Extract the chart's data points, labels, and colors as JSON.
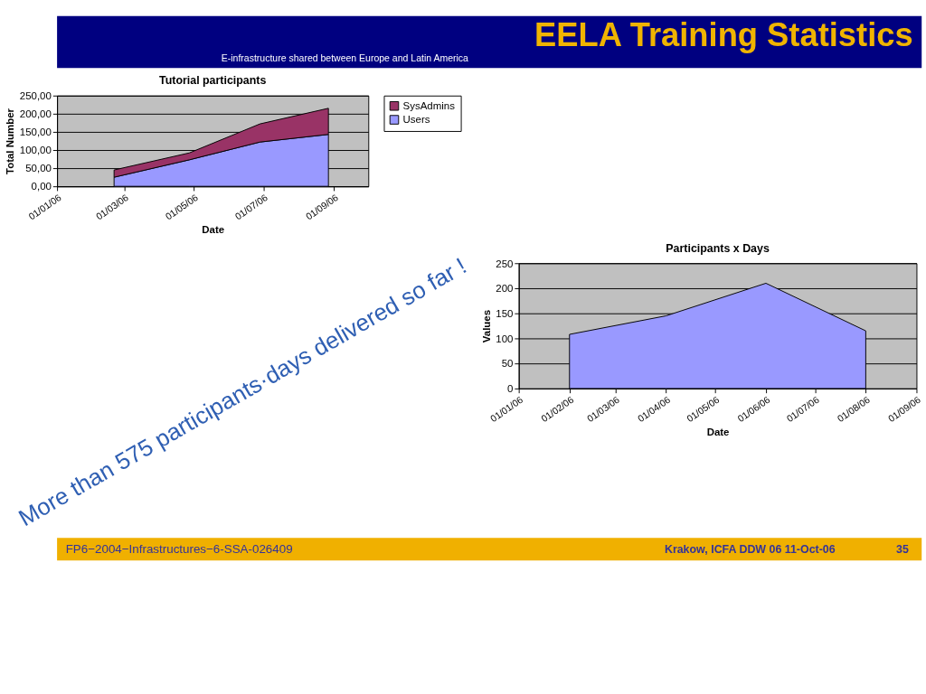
{
  "chart_data": [
    {
      "type": "area",
      "title": "Tutorial participants",
      "xlabel": "Date",
      "ylabel": "Total Number",
      "stacked": true,
      "grid": "y",
      "legend": "right",
      "x": [
        "2006-02-20",
        "2006-04-27",
        "2006-06-28",
        "2006-08-27"
      ],
      "series": [
        {
          "name": "Users",
          "color": "#9999ff",
          "values": [
            25,
            73,
            122,
            143
          ]
        },
        {
          "name": "SysAdmins",
          "color": "#993366",
          "values": [
            20,
            19,
            50,
            72
          ]
        }
      ],
      "xlim": [
        "2006-01-01",
        "2006-10-01"
      ],
      "xticks": [
        {
          "value": "2006-01-01",
          "label": "01/01/06"
        },
        {
          "value": "2006-03-01",
          "label": "01/03/06"
        },
        {
          "value": "2006-05-01",
          "label": "01/05/06"
        },
        {
          "value": "2006-07-01",
          "label": "01/07/06"
        },
        {
          "value": "2006-09-01",
          "label": "01/09/06"
        }
      ],
      "ylim": [
        0,
        250
      ],
      "yticks": [
        {
          "value": 0,
          "label": "0,00"
        },
        {
          "value": 50,
          "label": "50,00"
        },
        {
          "value": 100,
          "label": "100,00"
        },
        {
          "value": 150,
          "label": "150,00"
        },
        {
          "value": 200,
          "label": "200,00"
        },
        {
          "value": 250,
          "label": "250,00"
        }
      ],
      "annotations": [
        "EELA Training Statistics",
        "E-infrastructure shared between Europe and Latin America",
        "More than 575 participants·days delivered so far !",
        "FP6−2004−Infrastructures−6-SSA-026409",
        "Krakow, ICFA DDW 06 11-Oct-06",
        "35"
      ]
    },
    {
      "type": "area",
      "title": "Participants x Days",
      "xlabel": "Date",
      "ylabel": "Values",
      "grid": "y",
      "x": [
        "2006-02-01",
        "2006-04-01",
        "2006-06-01",
        "2006-08-01"
      ],
      "series": [
        {
          "color": "#9999ff",
          "values": [
            108,
            145,
            210,
            115
          ]
        }
      ],
      "xlim": [
        "2006-01-01",
        "2006-09-01"
      ],
      "xticks": [
        {
          "value": "2006-01-01",
          "label": "01/01/06"
        },
        {
          "value": "2006-02-01",
          "label": "01/02/06"
        },
        {
          "value": "2006-03-01",
          "label": "01/03/06"
        },
        {
          "value": "2006-04-01",
          "label": "01/04/06"
        },
        {
          "value": "2006-05-01",
          "label": "01/05/06"
        },
        {
          "value": "2006-06-01",
          "label": "01/06/06"
        },
        {
          "value": "2006-07-01",
          "label": "01/07/06"
        },
        {
          "value": "2006-08-01",
          "label": "01/08/06"
        },
        {
          "value": "2006-09-01",
          "label": "01/09/06"
        }
      ],
      "ylim": [
        0,
        250
      ],
      "yticks": [
        0,
        50,
        100,
        150,
        200,
        250
      ]
    }
  ]
}
